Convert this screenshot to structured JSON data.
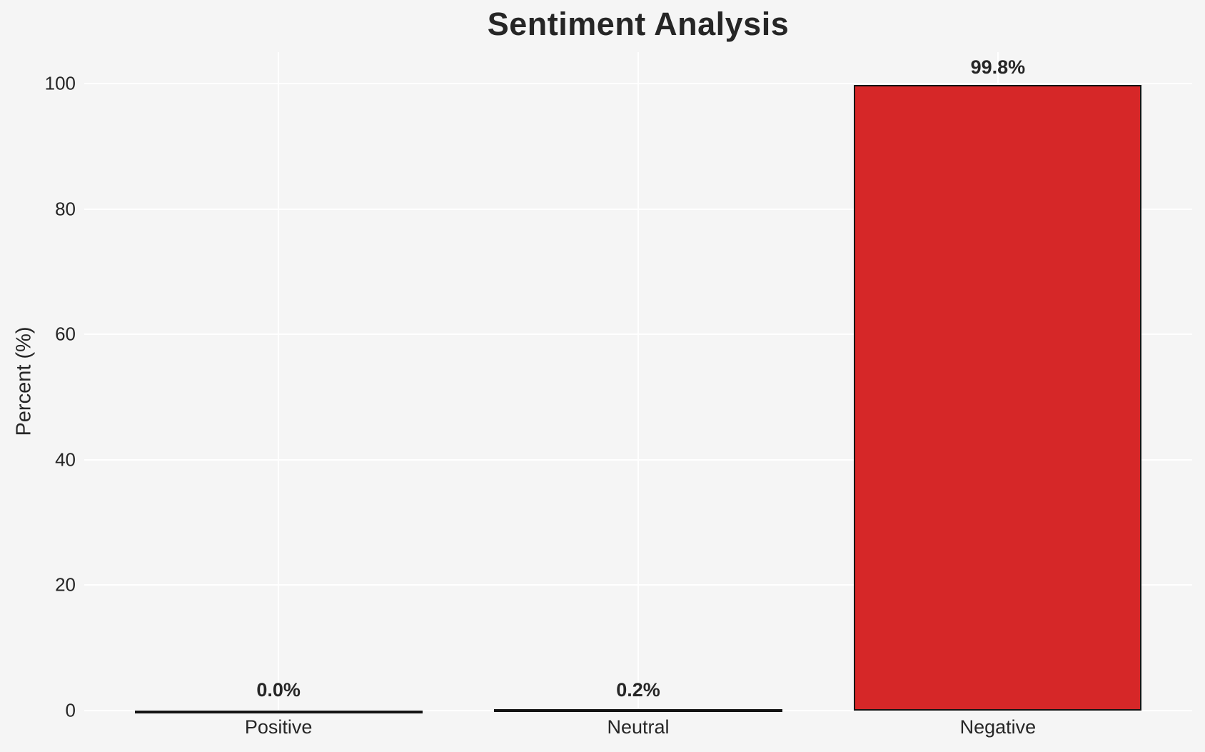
{
  "chart_data": {
    "type": "bar",
    "title": "Sentiment Analysis",
    "ylabel": "Percent (%)",
    "xlabel": "",
    "categories": [
      "Positive",
      "Neutral",
      "Negative"
    ],
    "values": [
      0.0,
      0.2,
      99.8
    ],
    "value_labels": [
      "0.0%",
      "0.2%",
      "99.8%"
    ],
    "yticks": [
      0,
      20,
      40,
      60,
      80,
      100
    ],
    "ylim": [
      0,
      105
    ],
    "grid": true,
    "legend": "none",
    "colors": {
      "background": "#f5f5f5",
      "gridline": "#ffffff",
      "bar_fill": "#d62728",
      "bar_edge": "#131313",
      "text": "#262626"
    }
  }
}
